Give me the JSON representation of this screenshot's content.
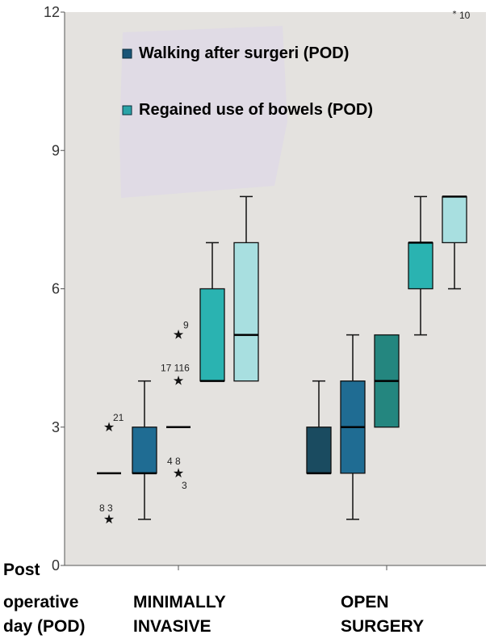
{
  "chart_data": {
    "type": "boxplot",
    "ylabel": [
      "Post",
      "operative",
      "day (POD)"
    ],
    "ylim": [
      0,
      12
    ],
    "yticks": [
      0,
      3,
      6,
      9,
      12
    ],
    "grid": false,
    "legend_position": "top-left",
    "categories": [
      "MINIMALLY INVASIVE",
      "OPEN SURGERY"
    ],
    "category_labels": [
      [
        "MINIMALLY",
        "INVASIVE"
      ],
      [
        "OPEN",
        "SURGERY"
      ]
    ],
    "legend": [
      {
        "name": "Walking after surgeri (POD)",
        "color": "#1a5577"
      },
      {
        "name": "Regained use of bowels (POD)",
        "color": "#2aa3a8"
      }
    ],
    "boxes": [
      {
        "category": "MINIMALLY INVASIVE",
        "color": "#1a4b60",
        "min": 2,
        "q1": 2,
        "median": 2,
        "q3": 2,
        "max": 2,
        "outliers": [
          {
            "value": 3,
            "label": "21"
          },
          {
            "value": 1,
            "label": "8 3"
          }
        ]
      },
      {
        "category": "MINIMALLY INVASIVE",
        "color": "#1f6c93",
        "min": 1,
        "q1": 2,
        "median": 2,
        "q3": 3,
        "max": 4,
        "outliers": []
      },
      {
        "category": "MINIMALLY INVASIVE",
        "color": "#24867f",
        "min": 3,
        "q1": 3,
        "median": 3,
        "q3": 3,
        "max": 3,
        "outliers": [
          {
            "value": 5,
            "label": "9"
          },
          {
            "value": 4,
            "label": "17 116"
          },
          {
            "value": 2,
            "label": "4 8 3"
          }
        ]
      },
      {
        "category": "MINIMALLY INVASIVE",
        "color": "#2ab3b1",
        "min": 4,
        "q1": 4,
        "median": 4,
        "q3": 6,
        "max": 7,
        "outliers": []
      },
      {
        "category": "MINIMALLY INVASIVE",
        "color": "#a8dfe0",
        "min": 4,
        "q1": 4,
        "median": 5,
        "q3": 7,
        "max": 8,
        "outliers": []
      },
      {
        "category": "OPEN SURGERY",
        "color": "#1a4b60",
        "min": 2,
        "q1": 2,
        "median": 2,
        "q3": 3,
        "max": 4,
        "outliers": []
      },
      {
        "category": "OPEN SURGERY",
        "color": "#1f6c93",
        "min": 1,
        "q1": 2,
        "median": 3,
        "q3": 4,
        "max": 5,
        "outliers": []
      },
      {
        "category": "OPEN SURGERY",
        "color": "#24867f",
        "min": 3,
        "q1": 3,
        "median": 4,
        "q3": 5,
        "max": 5,
        "outliers": []
      },
      {
        "category": "OPEN SURGERY",
        "color": "#2ab3b1",
        "min": 5,
        "q1": 6,
        "median": 7,
        "q3": 7,
        "max": 8,
        "outliers": []
      },
      {
        "category": "OPEN SURGERY",
        "color": "#a8dfe0",
        "min": 6,
        "q1": 7,
        "median": 8,
        "q3": 8,
        "max": 8,
        "outliers": [
          {
            "value": 12,
            "label": "10"
          }
        ]
      }
    ]
  }
}
